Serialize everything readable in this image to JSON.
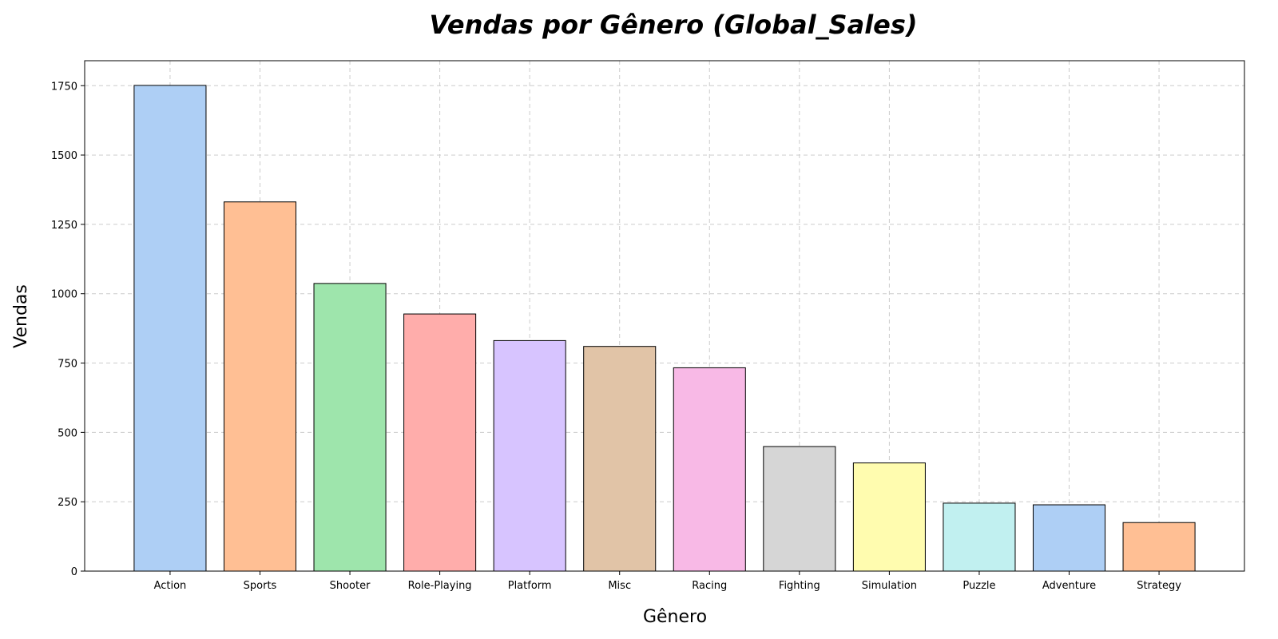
{
  "chart_data": {
    "type": "bar",
    "title": "Vendas por Gênero (Global_Sales)",
    "xlabel": "Gênero",
    "ylabel": "Vendas",
    "categories": [
      "Action",
      "Sports",
      "Shooter",
      "Role-Playing",
      "Platform",
      "Misc",
      "Racing",
      "Fighting",
      "Simulation",
      "Puzzle",
      "Adventure",
      "Strategy"
    ],
    "values": [
      1751,
      1331,
      1037,
      927,
      831,
      810,
      733,
      449,
      390,
      245,
      239,
      175
    ],
    "colors": [
      "#aecff5",
      "#ffbf94",
      "#9ee5ac",
      "#ffadab",
      "#d7c4ff",
      "#e1c4a7",
      "#f8b9e6",
      "#d6d6d6",
      "#fffcaf",
      "#c1f0f0",
      "#aecff5",
      "#ffbf94"
    ],
    "ylim": [
      0,
      1840
    ],
    "yticks": [
      0,
      250,
      500,
      750,
      1000,
      1250,
      1500,
      1750
    ],
    "grid": true
  }
}
